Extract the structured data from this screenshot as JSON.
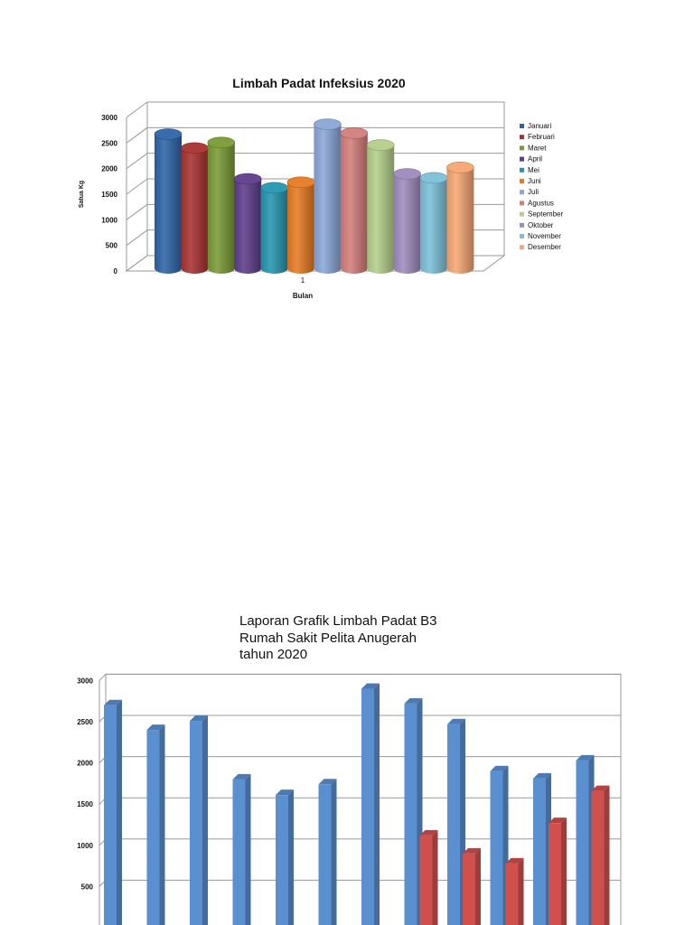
{
  "chart_data": [
    {
      "type": "bar",
      "style": "3d-cylinder",
      "title": "Limbah Padat Infeksius 2020",
      "xlabel": "Bulan",
      "ylabel": "Satua Kg",
      "categories": [
        "1"
      ],
      "ylim": [
        0,
        3000
      ],
      "yticks": [
        "0",
        "500",
        "1000",
        "1500",
        "2000",
        "2500",
        "3000"
      ],
      "grid": true,
      "legend_position": "right",
      "series": [
        {
          "name": "Januari",
          "values": [
            2700
          ],
          "color": "#2e64a8"
        },
        {
          "name": "Februari",
          "values": [
            2420
          ],
          "color": "#a83230"
        },
        {
          "name": "Maret",
          "values": [
            2530
          ],
          "color": "#7a9a35"
        },
        {
          "name": "April",
          "values": [
            1800
          ],
          "color": "#5e3d8a"
        },
        {
          "name": "Mei",
          "values": [
            1620
          ],
          "color": "#2596b0"
        },
        {
          "name": "Juni",
          "values": [
            1730
          ],
          "color": "#e67a22"
        },
        {
          "name": "Juli",
          "values": [
            2900
          ],
          "color": "#8aa6d6"
        },
        {
          "name": "Agustus",
          "values": [
            2720
          ],
          "color": "#d47d7b"
        },
        {
          "name": "September",
          "values": [
            2480
          ],
          "color": "#b4cf8a"
        },
        {
          "name": "Oktober",
          "values": [
            1900
          ],
          "color": "#9d8bbd"
        },
        {
          "name": "November",
          "values": [
            1820
          ],
          "color": "#7bc0d8"
        },
        {
          "name": "Desember",
          "values": [
            2030
          ],
          "color": "#f6a672"
        }
      ]
    },
    {
      "type": "bar",
      "style": "3d-column",
      "title_lines": [
        "Laporan Grafik Limbah Padat B3",
        "Rumah Sakit Pelita Anugerah",
        "tahun 2020"
      ],
      "ylim": [
        0,
        3000
      ],
      "yticks": [
        "500",
        "1000",
        "1500",
        "2000",
        "2500",
        "3000"
      ],
      "grid": true,
      "series": [
        {
          "values": [
            2700,
            2400,
            2510,
            1800,
            1610,
            1740,
            2900,
            2720,
            2470,
            1900,
            1810,
            2030
          ],
          "color": "#5a8fd0"
        },
        {
          "values": [
            null,
            null,
            null,
            null,
            null,
            null,
            null,
            1120,
            900,
            780,
            1270,
            1660
          ],
          "color": "#d0504e"
        }
      ]
    }
  ]
}
